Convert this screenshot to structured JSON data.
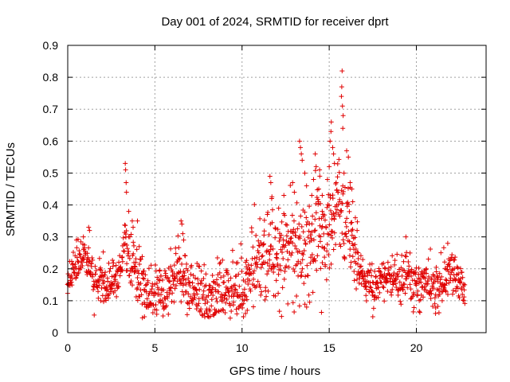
{
  "chart_data": {
    "type": "scatter",
    "title": "Day 001 of 2024, SRMTID for receiver dprt",
    "xlabel": "GPS time / hours",
    "ylabel": "SRMTID / TECUs",
    "xlim": [
      0,
      24
    ],
    "ylim": [
      0,
      0.9
    ],
    "xticks": [
      0,
      5,
      10,
      15,
      20
    ],
    "xtick_labels": [
      "0",
      "5",
      "10",
      "15",
      "20"
    ],
    "yticks": [
      0,
      0.1,
      0.2,
      0.3,
      0.4,
      0.5,
      0.6,
      0.7,
      0.8,
      0.9
    ],
    "ytick_labels": [
      "0",
      "0.1",
      "0.2",
      "0.3",
      "0.4",
      "0.5",
      "0.6",
      "0.7",
      "0.8",
      "0.9"
    ],
    "grid": true,
    "marker": "+",
    "color": "#e00000",
    "x_step_hours": 0.0333,
    "x_end_hours": 22.8,
    "trend": [
      [
        0.0,
        0.15
      ],
      [
        0.5,
        0.22
      ],
      [
        1.0,
        0.24
      ],
      [
        1.5,
        0.17
      ],
      [
        2.0,
        0.15
      ],
      [
        2.5,
        0.16
      ],
      [
        3.0,
        0.2
      ],
      [
        3.3,
        0.3
      ],
      [
        3.6,
        0.22
      ],
      [
        4.0,
        0.18
      ],
      [
        4.5,
        0.13
      ],
      [
        5.0,
        0.12
      ],
      [
        5.5,
        0.13
      ],
      [
        6.0,
        0.18
      ],
      [
        6.5,
        0.2
      ],
      [
        7.0,
        0.15
      ],
      [
        7.5,
        0.12
      ],
      [
        8.0,
        0.11
      ],
      [
        8.5,
        0.12
      ],
      [
        9.0,
        0.12
      ],
      [
        9.5,
        0.15
      ],
      [
        10.0,
        0.13
      ],
      [
        10.5,
        0.18
      ],
      [
        11.0,
        0.24
      ],
      [
        11.5,
        0.22
      ],
      [
        12.0,
        0.23
      ],
      [
        12.5,
        0.26
      ],
      [
        13.0,
        0.27
      ],
      [
        13.5,
        0.25
      ],
      [
        14.0,
        0.28
      ],
      [
        14.5,
        0.3
      ],
      [
        15.0,
        0.34
      ],
      [
        15.5,
        0.4
      ],
      [
        15.8,
        0.37
      ],
      [
        16.0,
        0.35
      ],
      [
        16.5,
        0.25
      ],
      [
        17.0,
        0.17
      ],
      [
        17.5,
        0.13
      ],
      [
        18.0,
        0.17
      ],
      [
        18.5,
        0.18
      ],
      [
        19.0,
        0.16
      ],
      [
        19.5,
        0.18
      ],
      [
        20.0,
        0.15
      ],
      [
        20.5,
        0.16
      ],
      [
        21.0,
        0.14
      ],
      [
        21.5,
        0.15
      ],
      [
        22.0,
        0.2
      ],
      [
        22.5,
        0.16
      ],
      [
        22.8,
        0.15
      ]
    ],
    "noise": [
      [
        0.0,
        0.04
      ],
      [
        3.0,
        0.05
      ],
      [
        10.5,
        0.07
      ],
      [
        12.0,
        0.1
      ],
      [
        14.5,
        0.11
      ],
      [
        16.0,
        0.1
      ],
      [
        17.0,
        0.04
      ],
      [
        22.8,
        0.05
      ]
    ],
    "peaks": [
      {
        "x": 3.3,
        "y": 0.53
      },
      {
        "x": 3.32,
        "y": 0.51
      },
      {
        "x": 3.35,
        "y": 0.47
      },
      {
        "x": 3.37,
        "y": 0.44
      },
      {
        "x": 3.5,
        "y": 0.38
      },
      {
        "x": 3.7,
        "y": 0.35
      },
      {
        "x": 3.75,
        "y": 0.33
      },
      {
        "x": 4.0,
        "y": 0.35
      },
      {
        "x": 4.1,
        "y": 0.27
      },
      {
        "x": 4.2,
        "y": 0.23
      },
      {
        "x": 6.5,
        "y": 0.35
      },
      {
        "x": 6.55,
        "y": 0.34
      },
      {
        "x": 6.6,
        "y": 0.31
      },
      {
        "x": 6.65,
        "y": 0.29
      },
      {
        "x": 0.5,
        "y": 0.29
      },
      {
        "x": 0.9,
        "y": 0.3
      },
      {
        "x": 1.2,
        "y": 0.33
      },
      {
        "x": 1.25,
        "y": 0.32
      },
      {
        "x": 11.6,
        "y": 0.49
      },
      {
        "x": 11.65,
        "y": 0.47
      },
      {
        "x": 11.7,
        "y": 0.42
      },
      {
        "x": 12.1,
        "y": 0.39
      },
      {
        "x": 12.9,
        "y": 0.47
      },
      {
        "x": 13.0,
        "y": 0.44
      },
      {
        "x": 12.4,
        "y": 0.43
      },
      {
        "x": 13.3,
        "y": 0.6
      },
      {
        "x": 13.35,
        "y": 0.58
      },
      {
        "x": 13.4,
        "y": 0.56
      },
      {
        "x": 13.45,
        "y": 0.54
      },
      {
        "x": 13.6,
        "y": 0.5
      },
      {
        "x": 13.7,
        "y": 0.46
      },
      {
        "x": 14.0,
        "y": 0.43
      },
      {
        "x": 14.1,
        "y": 0.48
      },
      {
        "x": 14.2,
        "y": 0.56
      },
      {
        "x": 14.25,
        "y": 0.52
      },
      {
        "x": 14.4,
        "y": 0.45
      },
      {
        "x": 14.45,
        "y": 0.51
      },
      {
        "x": 14.6,
        "y": 0.38
      },
      {
        "x": 14.6,
        "y": 0.43
      },
      {
        "x": 14.9,
        "y": 0.48
      },
      {
        "x": 15.0,
        "y": 0.52
      },
      {
        "x": 15.05,
        "y": 0.6
      },
      {
        "x": 15.1,
        "y": 0.63
      },
      {
        "x": 15.12,
        "y": 0.66
      },
      {
        "x": 15.2,
        "y": 0.58
      },
      {
        "x": 15.25,
        "y": 0.56
      },
      {
        "x": 15.3,
        "y": 0.53
      },
      {
        "x": 15.4,
        "y": 0.47
      },
      {
        "x": 15.5,
        "y": 0.44
      },
      {
        "x": 15.6,
        "y": 0.41
      },
      {
        "x": 15.7,
        "y": 0.74
      },
      {
        "x": 15.72,
        "y": 0.77
      },
      {
        "x": 15.74,
        "y": 0.82
      },
      {
        "x": 15.76,
        "y": 0.71
      },
      {
        "x": 15.78,
        "y": 0.64
      },
      {
        "x": 15.8,
        "y": 0.68
      },
      {
        "x": 15.85,
        "y": 0.5
      },
      {
        "x": 16.0,
        "y": 0.57
      },
      {
        "x": 16.1,
        "y": 0.55
      },
      {
        "x": 16.2,
        "y": 0.47
      },
      {
        "x": 16.3,
        "y": 0.45
      },
      {
        "x": 16.35,
        "y": 0.41
      },
      {
        "x": 16.5,
        "y": 0.36
      },
      {
        "x": 16.6,
        "y": 0.32
      },
      {
        "x": 19.4,
        "y": 0.3
      },
      {
        "x": 21.8,
        "y": 0.28
      },
      {
        "x": 10.2,
        "y": 0.06
      },
      {
        "x": 10.3,
        "y": 0.07
      },
      {
        "x": 17.5,
        "y": 0.05
      },
      {
        "x": 4.4,
        "y": 0.05
      },
      {
        "x": 21.1,
        "y": 0.06
      }
    ]
  }
}
